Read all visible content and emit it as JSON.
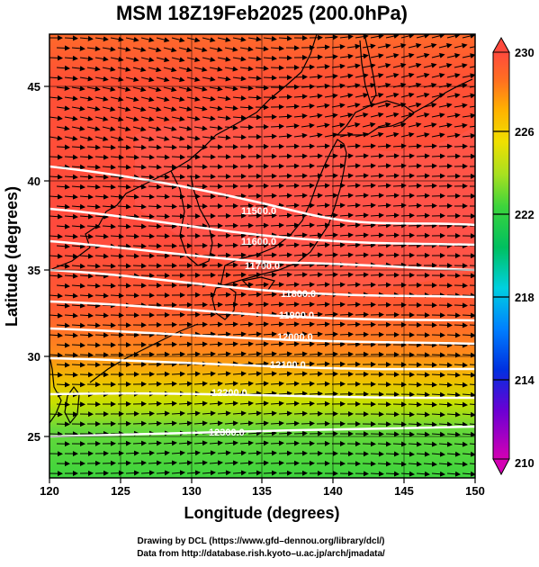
{
  "title": "MSM 18Z19Feb2025 (200.0hPa)",
  "x_axis": {
    "title": "Longitude (degrees)",
    "ticks": [
      "120",
      "125",
      "130",
      "135",
      "140",
      "145",
      "150"
    ]
  },
  "y_axis": {
    "title": "Latitude  (degrees)",
    "ticks": [
      "25",
      "30",
      "35",
      "40",
      "45"
    ]
  },
  "colorbar": {
    "labels": [
      "210",
      "214",
      "218",
      "222",
      "226",
      "230"
    ]
  },
  "contour_labels": [
    "11500.0",
    "11600.0",
    "11700.0",
    "11800.0",
    "11900.0",
    "12000.0",
    "12100.0",
    "12200.0",
    "12300.0"
  ],
  "credits": {
    "line1": "Drawing by DCL (https://www.gfd–dennou.org/library/dcl/)",
    "line2": "Data from http://database.rish.kyoto–u.ac.jp/arch/jmadata/"
  },
  "colors": {
    "warm": "#ff4a3d",
    "orange": "#ff8a1a",
    "yellow": "#e6d400",
    "green": "#3dd43d",
    "contour": "#ffffff",
    "arrows": "#000000",
    "coast": "#000000"
  }
}
